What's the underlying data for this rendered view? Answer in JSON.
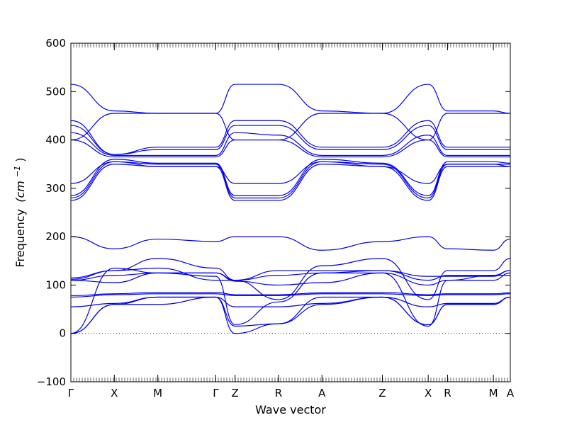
{
  "chart_data": {
    "type": "line",
    "title": "",
    "xlabel": "Wave vector",
    "ylabel_text": "Frequency",
    "ylabel_unit": "(cm",
    "ylabel_exp": "−1",
    "ylabel_close": ")",
    "ylim": [
      -100,
      600
    ],
    "yticks": [
      -100,
      0,
      100,
      200,
      300,
      400,
      500,
      600
    ],
    "zero_line": "dotted",
    "line_color": "#0000ee",
    "x_range": [
      0,
      9.1
    ],
    "high_symmetry_points": [
      {
        "label": "Γ",
        "x": 0.0
      },
      {
        "label": "X",
        "x": 0.9
      },
      {
        "label": "M",
        "x": 1.8
      },
      {
        "label": "Γ",
        "x": 3.0
      },
      {
        "label": "Z",
        "x": 3.4
      },
      {
        "label": "R",
        "x": 4.3
      },
      {
        "label": "A",
        "x": 5.2
      },
      {
        "label": "Z",
        "x": 6.45
      },
      {
        "label": "X",
        "x": 7.4
      },
      {
        "label": "R",
        "x": 7.8
      },
      {
        "label": "M",
        "x": 8.75
      },
      {
        "label": "A",
        "x": 9.1
      }
    ],
    "series": [
      {
        "values": [
          0,
          135,
          125,
          118,
          18,
          65,
          125,
          125,
          15,
          110,
          120,
          120,
          128
        ]
      },
      {
        "values": [
          0,
          60,
          60,
          75,
          15,
          20,
          60,
          75,
          18,
          60,
          60,
          75,
          75
        ]
      },
      {
        "values": [
          0,
          60,
          75,
          75,
          0,
          20,
          75,
          75,
          18,
          60,
          60,
          75,
          75
        ]
      },
      {
        "values": [
          55,
          62,
          75,
          75,
          55,
          55,
          62,
          75,
          55,
          62,
          62,
          75,
          75
        ]
      },
      {
        "values": [
          75,
          80,
          82,
          82,
          78,
          78,
          82,
          82,
          78,
          80,
          80,
          82,
          82
        ]
      },
      {
        "values": [
          78,
          82,
          85,
          85,
          80,
          80,
          84,
          85,
          80,
          82,
          82,
          84,
          84
        ]
      },
      {
        "values": [
          110,
          105,
          125,
          125,
          108,
          100,
          105,
          125,
          100,
          110,
          110,
          125,
          125
        ]
      },
      {
        "values": [
          110,
          120,
          125,
          125,
          110,
          120,
          125,
          130,
          118,
          118,
          118,
          130,
          130
        ]
      },
      {
        "values": [
          112,
          130,
          135,
          110,
          110,
          130,
          130,
          130,
          110,
          120,
          120,
          130,
          130
        ]
      },
      {
        "values": [
          115,
          130,
          155,
          135,
          110,
          70,
          140,
          155,
          70,
          130,
          130,
          155,
          155
        ]
      },
      {
        "values": [
          200,
          175,
          195,
          190,
          200,
          200,
          172,
          190,
          200,
          175,
          172,
          195,
          185
        ]
      },
      {
        "values": [
          275,
          350,
          345,
          345,
          275,
          275,
          350,
          345,
          275,
          345,
          345,
          345,
          345
        ]
      },
      {
        "values": [
          280,
          355,
          350,
          350,
          280,
          280,
          355,
          350,
          280,
          350,
          350,
          350,
          350
        ]
      },
      {
        "values": [
          285,
          360,
          352,
          352,
          285,
          285,
          360,
          352,
          285,
          355,
          355,
          352,
          352
        ]
      },
      {
        "values": [
          310,
          355,
          345,
          345,
          310,
          310,
          355,
          345,
          310,
          350,
          350,
          345,
          345
        ]
      },
      {
        "values": [
          400,
          365,
          365,
          365,
          400,
          400,
          365,
          365,
          400,
          365,
          365,
          365,
          365
        ]
      },
      {
        "values": [
          415,
          368,
          368,
          368,
          415,
          410,
          368,
          368,
          410,
          368,
          368,
          368,
          368
        ]
      },
      {
        "values": [
          430,
          370,
          380,
          380,
          430,
          430,
          380,
          380,
          430,
          380,
          380,
          380,
          380
        ]
      },
      {
        "values": [
          440,
          370,
          385,
          385,
          440,
          440,
          385,
          385,
          440,
          385,
          385,
          385,
          385
        ]
      },
      {
        "values": [
          400,
          455,
          455,
          455,
          400,
          400,
          455,
          455,
          400,
          455,
          455,
          455,
          455
        ]
      },
      {
        "values": [
          515,
          460,
          455,
          455,
          515,
          515,
          460,
          455,
          515,
          460,
          460,
          455,
          455
        ]
      }
    ]
  }
}
